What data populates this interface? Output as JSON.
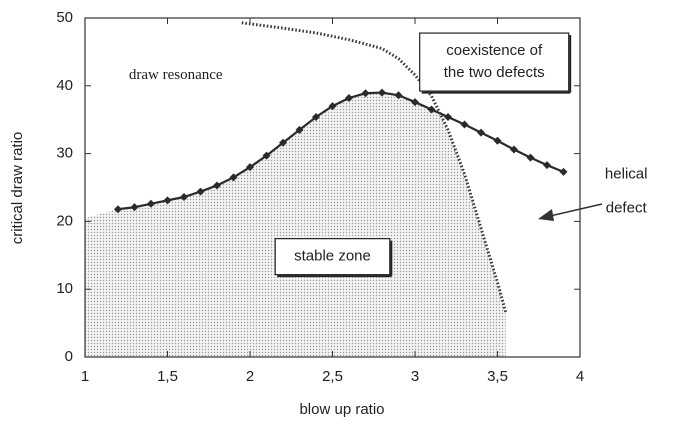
{
  "chart_data": {
    "type": "line",
    "xlabel": "blow up ratio",
    "ylabel": "critical draw ratio",
    "xlim": [
      1,
      4
    ],
    "ylim": [
      0,
      50
    ],
    "xticks": [
      1,
      {
        "value": 1.5,
        "label": "1,5"
      },
      2,
      {
        "value": 2.5,
        "label": "2,5"
      },
      3,
      {
        "value": 3.5,
        "label": "3,5"
      },
      4
    ],
    "yticks": [
      0,
      10,
      20,
      30,
      40,
      50
    ],
    "series": [
      {
        "color": "#2a2a2a",
        "marker": "diamond",
        "style": "solid",
        "x": [
          1.2,
          1.3,
          1.4,
          1.5,
          1.6,
          1.7,
          1.8,
          1.9,
          2.0,
          2.1,
          2.2,
          2.3,
          2.4,
          2.5,
          2.6,
          2.7,
          2.8,
          2.9,
          3.0,
          3.1,
          3.2,
          3.3,
          3.4,
          3.5,
          3.6,
          3.7,
          3.8,
          3.9
        ],
        "values": [
          21.8,
          22.1,
          22.6,
          23.1,
          23.6,
          24.4,
          25.3,
          26.5,
          28.0,
          29.7,
          31.6,
          33.5,
          35.4,
          37.0,
          38.2,
          38.9,
          39.0,
          38.6,
          37.6,
          36.5,
          35.4,
          34.3,
          33.1,
          31.9,
          30.6,
          29.4,
          28.3,
          27.3
        ]
      },
      {
        "color": "#3a3a3a",
        "style": "dotted",
        "x": [
          1.95,
          2.2,
          2.4,
          2.6,
          2.8,
          2.9,
          3.0,
          3.1,
          3.2,
          3.3,
          3.4,
          3.5,
          3.55
        ],
        "values": [
          49.3,
          48.5,
          47.8,
          46.8,
          45.5,
          44.0,
          41.6,
          38.5,
          33.5,
          27.0,
          19.0,
          11.0,
          6.6
        ]
      }
    ],
    "annotations": [
      {
        "lines": [
          "draw resonance"
        ],
        "x": 1.55,
        "y": 41.5,
        "boxed": false,
        "font": "serif"
      },
      {
        "lines": [
          "coexistence of",
          "the two defects"
        ],
        "x": 3.48,
        "y": 43.5,
        "boxed": true
      },
      {
        "lines": [
          "stable zone"
        ],
        "x": 2.5,
        "y": 14.8,
        "boxed": true
      },
      {
        "lines": [
          "helical",
          "defect"
        ],
        "x": 4.28,
        "y": 24.4,
        "boxed": false
      }
    ]
  }
}
